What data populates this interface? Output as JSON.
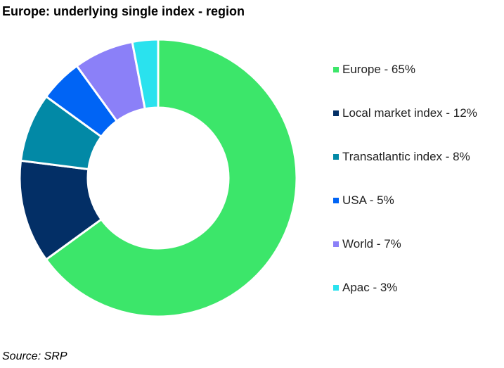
{
  "title": "Europe: underlying single index - region",
  "source": "Source: SRP",
  "chart_data": {
    "type": "pie",
    "title": "Europe: underlying single index - region",
    "donut": true,
    "legend_position": "right",
    "categories": [
      "Europe",
      "Local market index",
      "Transatlantic index",
      "USA",
      "World",
      "Apac"
    ],
    "values": [
      65,
      12,
      8,
      5,
      7,
      3
    ],
    "unit": "%",
    "legend_labels": [
      "Europe - 65%",
      "Local market index - 12%",
      "Transatlantic index - 8%",
      "USA - 5%",
      "World - 7%",
      "Apac - 3%"
    ],
    "colors": [
      "#3ce66a",
      "#032f66",
      "#0289a6",
      "#0064f5",
      "#8b80f8",
      "#2ae2ee"
    ]
  }
}
